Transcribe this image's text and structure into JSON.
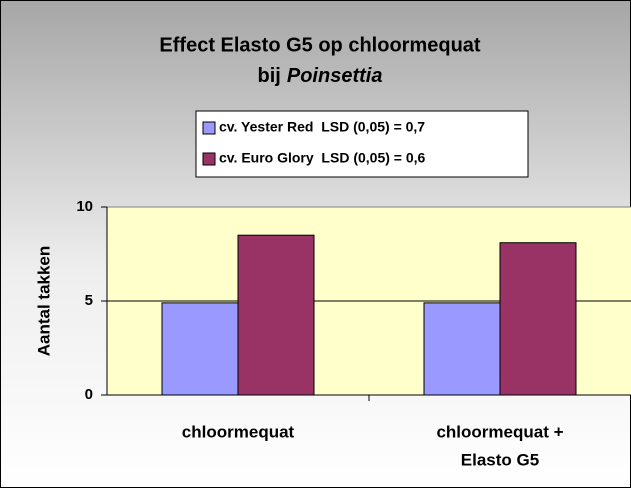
{
  "chart_data": {
    "type": "bar",
    "title": [
      "Effect Elasto G5 op chloormequat",
      "bij"
    ],
    "title_italic": "Poinsettia",
    "categories": [
      [
        "chloormequat"
      ],
      [
        "chloormequat +",
        "Elasto G5"
      ]
    ],
    "series": [
      {
        "name": "cv. Yester Red  LSD (0,05) = 0,7",
        "color": "#9999ff",
        "values": [
          4.9,
          4.9
        ]
      },
      {
        "name": "cv. Euro Glory  LSD (0,05) = 0,6",
        "color": "#993366",
        "values": [
          8.5,
          8.1
        ]
      }
    ],
    "ylabel": "Aantal takken",
    "ylim": [
      0,
      10
    ],
    "yticks": [
      0,
      5,
      10
    ],
    "grid": true
  }
}
